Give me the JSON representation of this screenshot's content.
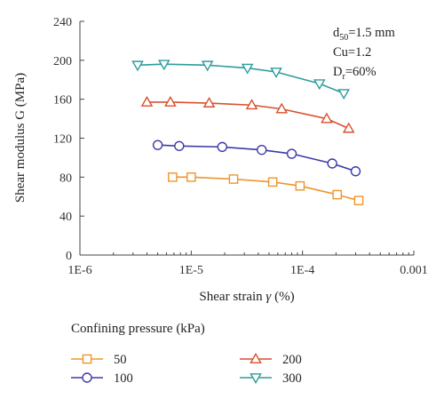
{
  "chart_data": {
    "type": "line",
    "xlabel_main": "Shear strain ",
    "xlabel_sym": "γ",
    "xlabel_unit": " (%)",
    "ylabel": "Shear modulus G (MPa)",
    "x_scale": "log",
    "xlim": [
      1e-06,
      0.001
    ],
    "ylim": [
      0,
      240
    ],
    "x_ticks": [
      {
        "value": 1e-06,
        "label": "1E-6"
      },
      {
        "value": 1e-05,
        "label": "1E-5"
      },
      {
        "value": 0.0001,
        "label": "1E-4"
      },
      {
        "value": 0.001,
        "label": "0.001"
      }
    ],
    "y_ticks": [
      {
        "value": 0,
        "label": "0"
      },
      {
        "value": 40,
        "label": "40"
      },
      {
        "value": 80,
        "label": "80"
      },
      {
        "value": 120,
        "label": "120"
      },
      {
        "value": 160,
        "label": "160"
      },
      {
        "value": 200,
        "label": "200"
      },
      {
        "value": 240,
        "label": "240"
      }
    ],
    "grid": false,
    "annotations": {
      "d50_main": "d",
      "d50_sub": "50",
      "d50_val": "=1.5 mm",
      "cu": "Cu=1.2",
      "dr_main": "D",
      "dr_sub": "r",
      "dr_val": "=60%"
    },
    "legend_title": "Confining pressure (kPa)",
    "legend_position": "below",
    "series": [
      {
        "name": "50",
        "marker": "square",
        "color": "#F0952E",
        "x": [
          6.8e-06,
          1e-05,
          2.4e-05,
          5.4e-05,
          9.5e-05,
          0.000205,
          0.00032
        ],
        "y": [
          80,
          80,
          78,
          75,
          71,
          62,
          56
        ]
      },
      {
        "name": "100",
        "marker": "circle",
        "color": "#3D3BA8",
        "x": [
          5e-06,
          7.8e-06,
          1.9e-05,
          4.3e-05,
          8e-05,
          0.000185,
          0.0003
        ],
        "y": [
          113,
          112,
          111,
          108,
          104,
          94,
          86
        ]
      },
      {
        "name": "200",
        "marker": "triangle-up",
        "color": "#D9502E",
        "x": [
          4e-06,
          6.5e-06,
          1.45e-05,
          3.5e-05,
          6.5e-05,
          0.000165,
          0.00026
        ],
        "y": [
          157,
          157,
          156,
          154,
          150,
          140,
          130
        ]
      },
      {
        "name": "300",
        "marker": "triangle-down",
        "color": "#2E9C9C",
        "x": [
          3.3e-06,
          5.7e-06,
          1.4e-05,
          3.2e-05,
          5.8e-05,
          0.000142,
          0.000235
        ],
        "y": [
          195,
          196,
          195,
          192,
          188,
          176,
          166
        ]
      }
    ]
  }
}
